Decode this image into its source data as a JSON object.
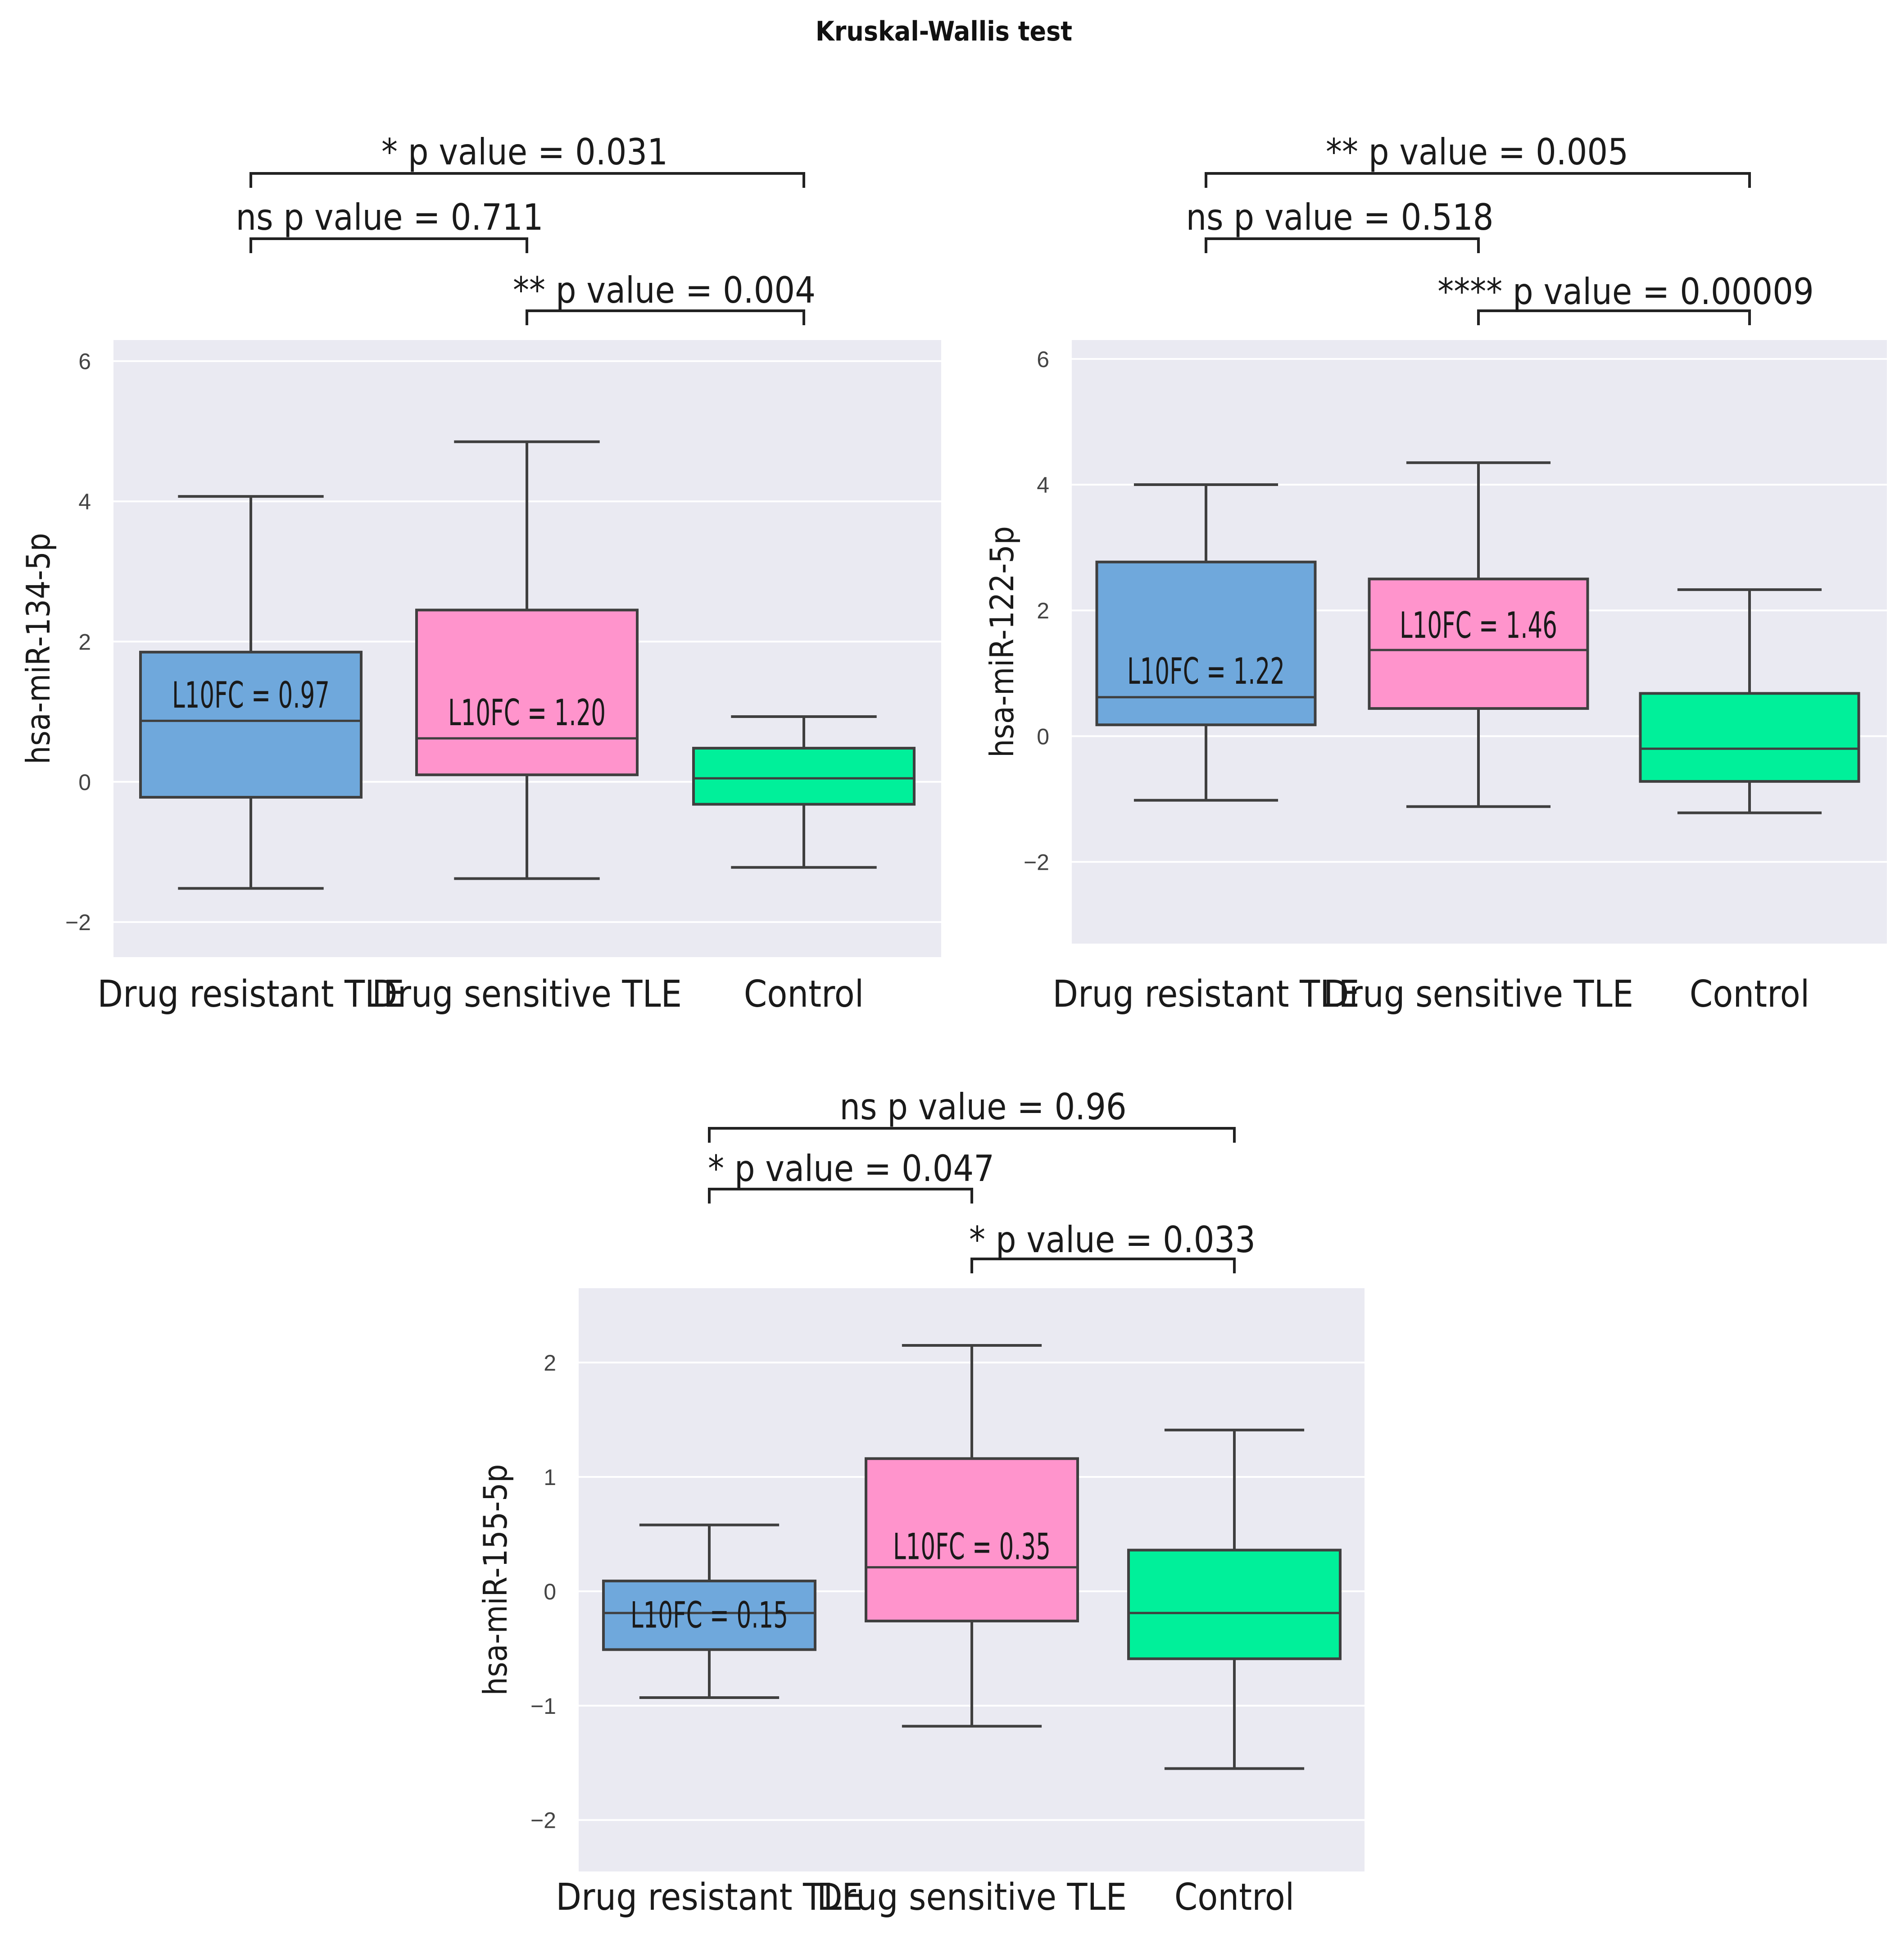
{
  "figure_title": "Kruskal-Wallis test",
  "chart_data": [
    {
      "type": "box",
      "ylabel": "hsa-miR-134-5p",
      "ylim": [
        -2.5,
        6.3
      ],
      "yticks": [
        -2,
        0,
        2,
        4,
        6
      ],
      "yticklabels": [
        "−2",
        "0",
        "2",
        "4",
        "6"
      ],
      "categories": [
        "Drug resistant TLE",
        "Drug sensitive TLE",
        "Control"
      ],
      "colors": [
        "#6fa8dc",
        "#ff94cc",
        "#00f09a"
      ],
      "boxes": [
        {
          "whislo": -1.52,
          "q1": -0.22,
          "med": 0.87,
          "q3": 1.85,
          "whishi": 4.07
        },
        {
          "whislo": -1.38,
          "q1": 0.1,
          "med": 0.62,
          "q3": 2.45,
          "whishi": 4.85
        },
        {
          "whislo": -1.22,
          "q1": -0.32,
          "med": 0.05,
          "q3": 0.48,
          "whishi": 0.93
        }
      ],
      "annotations": [
        {
          "text": "L10FC = 0.97",
          "x": 0,
          "y": 1.25
        },
        {
          "text": "L10FC = 1.20",
          "x": 1,
          "y": 1.0
        }
      ],
      "comparisons": [
        {
          "from": 0,
          "to": 1,
          "label": "ns p value = 0.711"
        },
        {
          "from": 1,
          "to": 2,
          "label": "** p value = 0.004"
        },
        {
          "from": 0,
          "to": 2,
          "label": "* p value = 0.031"
        }
      ]
    },
    {
      "type": "box",
      "ylabel": "hsa-miR-122-5p",
      "ylim": [
        -3.3,
        6.3
      ],
      "yticks": [
        -2,
        0,
        2,
        4,
        6
      ],
      "yticklabels": [
        "−2",
        "0",
        "2",
        "4",
        "6"
      ],
      "categories": [
        "Drug resistant TLE",
        "Drug sensitive TLE",
        "Control"
      ],
      "colors": [
        "#6fa8dc",
        "#ff94cc",
        "#00f09a"
      ],
      "boxes": [
        {
          "whislo": -1.02,
          "q1": 0.18,
          "med": 0.62,
          "q3": 2.77,
          "whishi": 4.0
        },
        {
          "whislo": -1.12,
          "q1": 0.44,
          "med": 1.37,
          "q3": 2.5,
          "whishi": 4.35
        },
        {
          "whislo": -1.22,
          "q1": -0.72,
          "med": -0.2,
          "q3": 0.68,
          "whishi": 2.33
        }
      ],
      "annotations": [
        {
          "text": "L10FC = 1.22",
          "x": 0,
          "y": 1.05
        },
        {
          "text": "L10FC = 1.46",
          "x": 1,
          "y": 1.78
        }
      ],
      "comparisons": [
        {
          "from": 0,
          "to": 1,
          "label": "ns p value = 0.518"
        },
        {
          "from": 1,
          "to": 2,
          "label": "**** p value = 0.00009"
        },
        {
          "from": 0,
          "to": 2,
          "label": "** p value = 0.005"
        }
      ]
    },
    {
      "type": "box",
      "ylabel": "hsa-miR-155-5p",
      "ylim": [
        -2.45,
        2.65
      ],
      "yticks": [
        -2,
        -1,
        0,
        1,
        2
      ],
      "yticklabels": [
        "−2",
        "−1",
        "0",
        "1",
        "2"
      ],
      "categories": [
        "Drug resistant TLE",
        "Drug sensitive TLE",
        "Control"
      ],
      "colors": [
        "#6fa8dc",
        "#ff94cc",
        "#00f09a"
      ],
      "boxes": [
        {
          "whislo": -0.93,
          "q1": -0.51,
          "med": -0.19,
          "q3": 0.09,
          "whishi": 0.58
        },
        {
          "whislo": -1.18,
          "q1": -0.26,
          "med": 0.21,
          "q3": 1.16,
          "whishi": 2.15
        },
        {
          "whislo": -1.55,
          "q1": -0.59,
          "med": -0.19,
          "q3": 0.36,
          "whishi": 1.41
        }
      ],
      "annotations": [
        {
          "text": "L10FC = 0.15",
          "x": 0,
          "y": -0.2
        },
        {
          "text": "L10FC = 0.35",
          "x": 1,
          "y": 0.4
        }
      ],
      "comparisons": [
        {
          "from": 0,
          "to": 1,
          "label": "* p value = 0.047"
        },
        {
          "from": 1,
          "to": 2,
          "label": "* p value = 0.033"
        },
        {
          "from": 0,
          "to": 2,
          "label": "ns p value = 0.96"
        }
      ]
    }
  ]
}
